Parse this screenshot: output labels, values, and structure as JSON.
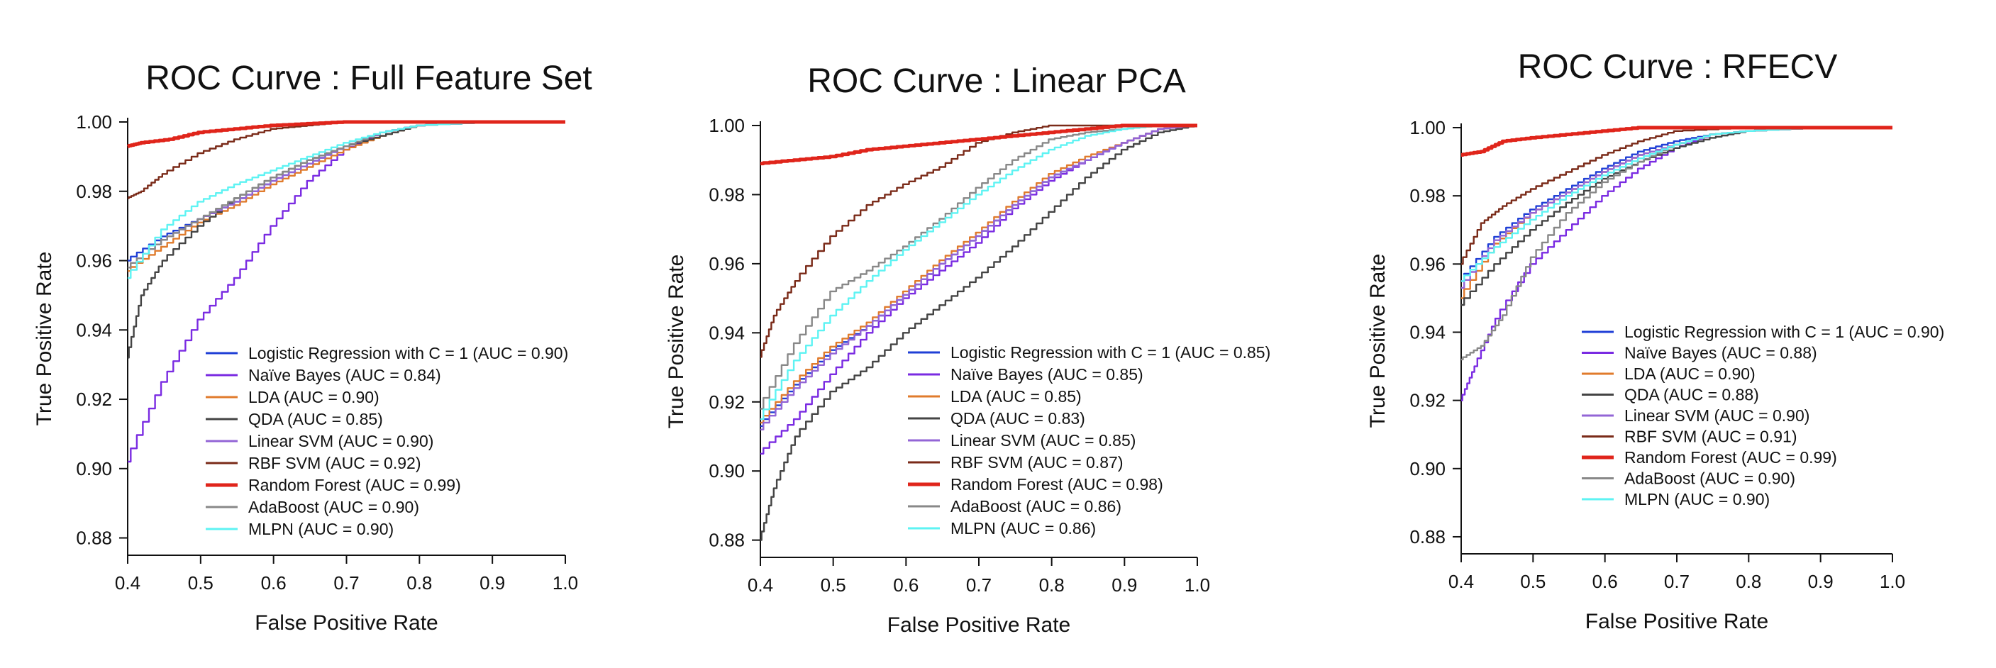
{
  "colors": {
    "Logistic Regression": "#1f3fd6",
    "Naive Bayes": "#7a2be2",
    "LDA": "#e07b2c",
    "QDA": "#444444",
    "Linear SVM": "#9365d6",
    "RBF SVM": "#7a2a18",
    "Random Forest": "#e0251b",
    "AdaBoost": "#888888",
    "MLPN": "#5ef3f3"
  },
  "chart_data": [
    {
      "type": "line",
      "title": "ROC Curve : Full Feature Set",
      "xlabel": "False Positive Rate",
      "ylabel": "True Positive Rate",
      "xlim": [
        0.4,
        1.0
      ],
      "ylim": [
        0.875,
        1.0
      ],
      "xticks": [
        "0.4",
        "0.5",
        "0.6",
        "0.7",
        "0.8",
        "0.9",
        "1.0"
      ],
      "yticks": [
        "0.88",
        "0.90",
        "0.92",
        "0.94",
        "0.96",
        "0.98",
        "1.00"
      ],
      "legend_position": "lower-right",
      "series": [
        {
          "name": "Logistic Regression with C = 1 (AUC = 0.90)",
          "color_key": "Logistic Regression",
          "x": [
            0.4,
            0.45,
            0.5,
            0.55,
            0.6,
            0.65,
            0.7,
            0.75,
            0.8,
            0.9,
            1.0
          ],
          "y": [
            0.96,
            0.967,
            0.972,
            0.977,
            0.983,
            0.988,
            0.993,
            0.997,
            0.999,
            1.0,
            1.0
          ]
        },
        {
          "name": "Naïve Bayes  (AUC = 0.84)",
          "color_key": "Naive Bayes",
          "x": [
            0.4,
            0.45,
            0.5,
            0.55,
            0.6,
            0.65,
            0.7,
            0.75,
            0.8,
            0.9,
            1.0
          ],
          "y": [
            0.902,
            0.925,
            0.943,
            0.955,
            0.97,
            0.983,
            0.992,
            0.997,
            0.999,
            1.0,
            1.0
          ]
        },
        {
          "name": "LDA (AUC = 0.90)",
          "color_key": "LDA",
          "x": [
            0.4,
            0.45,
            0.5,
            0.55,
            0.6,
            0.65,
            0.7,
            0.75,
            0.8,
            0.9,
            1.0
          ],
          "y": [
            0.957,
            0.964,
            0.971,
            0.976,
            0.982,
            0.987,
            0.992,
            0.996,
            0.999,
            1.0,
            1.0
          ]
        },
        {
          "name": "QDA (AUC = 0.85)",
          "color_key": "QDA",
          "x": [
            0.4,
            0.42,
            0.45,
            0.5,
            0.55,
            0.6,
            0.65,
            0.7,
            0.75,
            0.8,
            0.9,
            1.0
          ],
          "y": [
            0.932,
            0.95,
            0.96,
            0.97,
            0.978,
            0.984,
            0.989,
            0.993,
            0.996,
            0.999,
            1.0,
            1.0
          ]
        },
        {
          "name": "Linear SVM (AUC = 0.90)",
          "color_key": "Linear SVM",
          "x": [
            0.4,
            0.45,
            0.5,
            0.55,
            0.6,
            0.65,
            0.7,
            0.75,
            0.8,
            0.9,
            1.0
          ],
          "y": [
            0.958,
            0.966,
            0.972,
            0.977,
            0.983,
            0.988,
            0.993,
            0.997,
            0.999,
            1.0,
            1.0
          ]
        },
        {
          "name": "RBF SVM (AUC = 0.92)",
          "color_key": "RBF SVM",
          "x": [
            0.4,
            0.42,
            0.45,
            0.5,
            0.55,
            0.6,
            0.65,
            0.7,
            0.8,
            1.0
          ],
          "y": [
            0.978,
            0.98,
            0.985,
            0.991,
            0.995,
            0.998,
            0.999,
            1.0,
            1.0,
            1.0
          ]
        },
        {
          "name": "Random Forest (AUC = 0.99)",
          "color_key": "Random Forest",
          "x": [
            0.4,
            0.42,
            0.46,
            0.5,
            0.55,
            0.6,
            0.65,
            0.7,
            0.8,
            1.0
          ],
          "y": [
            0.993,
            0.994,
            0.995,
            0.997,
            0.998,
            0.999,
            0.9995,
            1.0,
            1.0,
            1.0
          ]
        },
        {
          "name": "AdaBoost (AUC = 0.90)",
          "color_key": "AdaBoost",
          "x": [
            0.4,
            0.45,
            0.5,
            0.55,
            0.6,
            0.65,
            0.7,
            0.75,
            0.8,
            0.9,
            1.0
          ],
          "y": [
            0.958,
            0.966,
            0.972,
            0.978,
            0.984,
            0.989,
            0.993,
            0.997,
            0.999,
            1.0,
            1.0
          ]
        },
        {
          "name": "MLPN (AUC = 0.90)",
          "color_key": "MLPN",
          "x": [
            0.4,
            0.45,
            0.5,
            0.55,
            0.6,
            0.65,
            0.7,
            0.75,
            0.8,
            0.9,
            1.0
          ],
          "y": [
            0.955,
            0.969,
            0.977,
            0.982,
            0.986,
            0.99,
            0.994,
            0.997,
            0.999,
            1.0,
            1.0
          ]
        }
      ]
    },
    {
      "type": "line",
      "title": "ROC Curve : Linear PCA",
      "xlabel": "False Positive Rate",
      "ylabel": "True Positive Rate",
      "xlim": [
        0.4,
        1.0
      ],
      "ylim": [
        0.875,
        1.0
      ],
      "xticks": [
        "0.4",
        "0.5",
        "0.6",
        "0.7",
        "0.8",
        "0.9",
        "1.0"
      ],
      "yticks": [
        "0.88",
        "0.90",
        "0.92",
        "0.94",
        "0.96",
        "0.98",
        "1.00"
      ],
      "legend_position": "lower-right",
      "series": [
        {
          "name": "Logistic Regression with C = 1 (AUC = 0.85)",
          "color_key": "Logistic Regression",
          "x": [
            0.4,
            0.45,
            0.5,
            0.55,
            0.6,
            0.65,
            0.7,
            0.75,
            0.8,
            0.85,
            0.9,
            0.95,
            1.0
          ],
          "y": [
            0.913,
            0.925,
            0.935,
            0.942,
            0.951,
            0.96,
            0.968,
            0.977,
            0.985,
            0.99,
            0.995,
            0.999,
            1.0
          ]
        },
        {
          "name": "Naïve Bayes  (AUC = 0.85)",
          "color_key": "Naive Bayes",
          "x": [
            0.4,
            0.45,
            0.5,
            0.55,
            0.6,
            0.65,
            0.7,
            0.75,
            0.8,
            0.85,
            0.9,
            0.95,
            1.0
          ],
          "y": [
            0.905,
            0.915,
            0.928,
            0.94,
            0.95,
            0.958,
            0.966,
            0.976,
            0.984,
            0.99,
            0.995,
            0.999,
            1.0
          ]
        },
        {
          "name": "LDA (AUC = 0.85)",
          "color_key": "LDA",
          "x": [
            0.4,
            0.45,
            0.5,
            0.55,
            0.6,
            0.65,
            0.7,
            0.75,
            0.8,
            0.85,
            0.9,
            0.95,
            1.0
          ],
          "y": [
            0.914,
            0.926,
            0.936,
            0.943,
            0.952,
            0.961,
            0.969,
            0.978,
            0.986,
            0.991,
            0.995,
            0.999,
            1.0
          ]
        },
        {
          "name": "QDA (AUC = 0.83)",
          "color_key": "QDA",
          "x": [
            0.4,
            0.42,
            0.45,
            0.5,
            0.55,
            0.6,
            0.65,
            0.7,
            0.75,
            0.8,
            0.85,
            0.9,
            0.95,
            1.0
          ],
          "y": [
            0.88,
            0.895,
            0.91,
            0.923,
            0.93,
            0.94,
            0.948,
            0.956,
            0.965,
            0.975,
            0.985,
            0.993,
            0.998,
            1.0
          ]
        },
        {
          "name": "Linear SVM (AUC = 0.85)",
          "color_key": "Linear SVM",
          "x": [
            0.4,
            0.45,
            0.5,
            0.55,
            0.6,
            0.65,
            0.7,
            0.75,
            0.8,
            0.85,
            0.9,
            0.95,
            1.0
          ],
          "y": [
            0.912,
            0.924,
            0.934,
            0.942,
            0.951,
            0.96,
            0.968,
            0.977,
            0.985,
            0.99,
            0.995,
            0.999,
            1.0
          ]
        },
        {
          "name": "RBF SVM (AUC = 0.87)",
          "color_key": "RBF SVM",
          "x": [
            0.4,
            0.42,
            0.45,
            0.5,
            0.55,
            0.6,
            0.65,
            0.7,
            0.75,
            0.8,
            0.9,
            1.0
          ],
          "y": [
            0.933,
            0.945,
            0.955,
            0.968,
            0.977,
            0.983,
            0.988,
            0.995,
            0.998,
            1.0,
            1.0,
            1.0
          ]
        },
        {
          "name": "Random Forest (AUC = 0.98)",
          "color_key": "Random Forest",
          "x": [
            0.4,
            0.45,
            0.5,
            0.55,
            0.6,
            0.65,
            0.7,
            0.75,
            0.8,
            0.85,
            0.9,
            1.0
          ],
          "y": [
            0.989,
            0.99,
            0.991,
            0.993,
            0.994,
            0.995,
            0.996,
            0.997,
            0.998,
            0.999,
            1.0,
            1.0
          ]
        },
        {
          "name": "AdaBoost (AUC = 0.86)",
          "color_key": "AdaBoost",
          "x": [
            0.4,
            0.45,
            0.5,
            0.55,
            0.6,
            0.65,
            0.7,
            0.75,
            0.8,
            0.85,
            0.9,
            0.95,
            1.0
          ],
          "y": [
            0.918,
            0.937,
            0.952,
            0.958,
            0.965,
            0.973,
            0.982,
            0.99,
            0.996,
            0.998,
            0.999,
            1.0,
            1.0
          ]
        },
        {
          "name": "MLPN (AUC = 0.86)",
          "color_key": "MLPN",
          "x": [
            0.4,
            0.45,
            0.5,
            0.55,
            0.6,
            0.65,
            0.7,
            0.75,
            0.8,
            0.85,
            0.9,
            0.95,
            1.0
          ],
          "y": [
            0.915,
            0.932,
            0.945,
            0.955,
            0.964,
            0.972,
            0.98,
            0.987,
            0.993,
            0.997,
            0.999,
            1.0,
            1.0
          ]
        }
      ]
    },
    {
      "type": "line",
      "title": "ROC Curve : RFECV",
      "xlabel": "False Positive Rate",
      "ylabel": "True Positive Rate",
      "xlim": [
        0.4,
        1.0
      ],
      "ylim": [
        0.875,
        1.0
      ],
      "xticks": [
        "0.4",
        "0.5",
        "0.6",
        "0.7",
        "0.8",
        "0.9",
        "1.0"
      ],
      "yticks": [
        "0.88",
        "0.90",
        "0.92",
        "0.94",
        "0.96",
        "0.98",
        "1.00"
      ],
      "legend_position": "right",
      "series": [
        {
          "name": "Logistic Regression with C = 1 (AUC = 0.90)",
          "color_key": "Logistic Regression",
          "x": [
            0.4,
            0.45,
            0.5,
            0.55,
            0.6,
            0.65,
            0.7,
            0.75,
            0.8,
            0.9,
            1.0
          ],
          "y": [
            0.955,
            0.968,
            0.976,
            0.982,
            0.988,
            0.993,
            0.996,
            0.998,
            0.999,
            1.0,
            1.0
          ]
        },
        {
          "name": "Naïve Bayes  (AUC = 0.88)",
          "color_key": "Naive Bayes",
          "x": [
            0.4,
            0.42,
            0.45,
            0.5,
            0.55,
            0.6,
            0.65,
            0.7,
            0.75,
            0.8,
            0.9,
            1.0
          ],
          "y": [
            0.92,
            0.93,
            0.944,
            0.96,
            0.97,
            0.98,
            0.988,
            0.994,
            0.998,
            0.999,
            1.0,
            1.0
          ]
        },
        {
          "name": "LDA (AUC = 0.90)",
          "color_key": "LDA",
          "x": [
            0.4,
            0.45,
            0.5,
            0.55,
            0.6,
            0.65,
            0.7,
            0.75,
            0.8,
            0.9,
            1.0
          ],
          "y": [
            0.95,
            0.966,
            0.975,
            0.981,
            0.987,
            0.992,
            0.995,
            0.998,
            0.999,
            1.0,
            1.0
          ]
        },
        {
          "name": "QDA (AUC = 0.88)",
          "color_key": "QDA",
          "x": [
            0.4,
            0.45,
            0.5,
            0.55,
            0.6,
            0.65,
            0.7,
            0.75,
            0.8,
            0.9,
            1.0
          ],
          "y": [
            0.948,
            0.96,
            0.97,
            0.978,
            0.985,
            0.99,
            0.994,
            0.997,
            0.999,
            1.0,
            1.0
          ]
        },
        {
          "name": "Linear SVM (AUC = 0.90)",
          "color_key": "Linear SVM",
          "x": [
            0.4,
            0.45,
            0.5,
            0.55,
            0.6,
            0.65,
            0.7,
            0.75,
            0.8,
            0.9,
            1.0
          ],
          "y": [
            0.953,
            0.967,
            0.975,
            0.981,
            0.987,
            0.992,
            0.995,
            0.998,
            0.999,
            1.0,
            1.0
          ]
        },
        {
          "name": "RBF SVM (AUC = 0.91)",
          "color_key": "RBF SVM",
          "x": [
            0.4,
            0.43,
            0.46,
            0.5,
            0.55,
            0.6,
            0.65,
            0.7,
            0.8,
            1.0
          ],
          "y": [
            0.96,
            0.972,
            0.977,
            0.982,
            0.987,
            0.992,
            0.996,
            0.999,
            1.0,
            1.0
          ]
        },
        {
          "name": "Random Forest (AUC = 0.99)",
          "color_key": "Random Forest",
          "x": [
            0.4,
            0.43,
            0.46,
            0.5,
            0.55,
            0.6,
            0.65,
            0.7,
            0.8,
            1.0
          ],
          "y": [
            0.992,
            0.993,
            0.996,
            0.997,
            0.998,
            0.999,
            1.0,
            1.0,
            1.0,
            1.0
          ]
        },
        {
          "name": "AdaBoost (AUC = 0.90)",
          "color_key": "AdaBoost",
          "x": [
            0.4,
            0.43,
            0.46,
            0.5,
            0.55,
            0.6,
            0.65,
            0.7,
            0.75,
            0.8,
            0.9,
            1.0
          ],
          "y": [
            0.932,
            0.936,
            0.945,
            0.962,
            0.975,
            0.984,
            0.99,
            0.995,
            0.998,
            0.999,
            1.0,
            1.0
          ]
        },
        {
          "name": "MLPN (AUC = 0.90)",
          "color_key": "MLPN",
          "x": [
            0.4,
            0.45,
            0.5,
            0.55,
            0.6,
            0.65,
            0.7,
            0.75,
            0.8,
            0.9,
            1.0
          ],
          "y": [
            0.955,
            0.965,
            0.973,
            0.98,
            0.986,
            0.991,
            0.995,
            0.998,
            0.999,
            1.0,
            1.0
          ]
        }
      ]
    }
  ]
}
